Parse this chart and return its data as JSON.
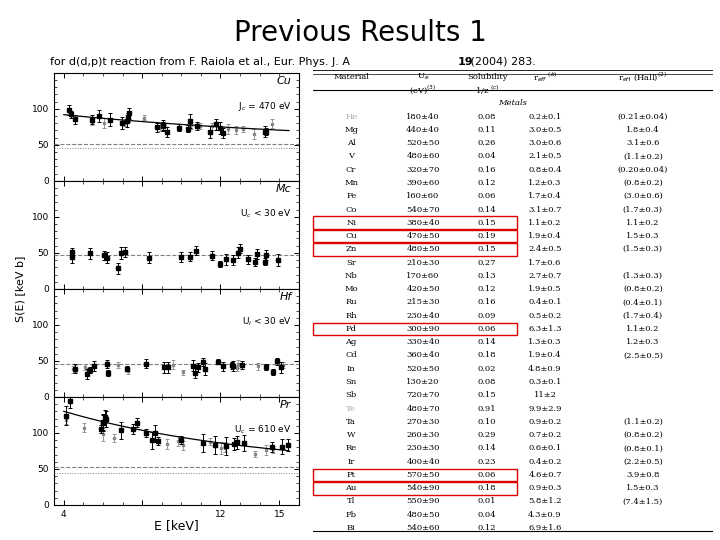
{
  "title": "Previous Results 1",
  "subtitle_pre": "for d(d,p)t reaction from F. Raiola et al., Eur. Phys. J. A",
  "subtitle_bold": "19",
  "subtitle_post": " (2004) 283.",
  "table_data": [
    [
      "He",
      "180±40",
      "0.08",
      "0.2±0.1",
      "(0.21±0.04)"
    ],
    [
      "Mg",
      "440±40",
      "0.11",
      "3.0±0.5",
      "1.8±0.4"
    ],
    [
      "Al",
      "520±50",
      "0.26",
      "3.0±0.6",
      "3.1±0.6"
    ],
    [
      "V",
      "480±60",
      "0.04",
      "2.1±0.5",
      "(1.1±0.2)"
    ],
    [
      "Cr",
      "320±70",
      "0.16",
      "0.8±0.4",
      "(0.20±0.04)"
    ],
    [
      "Mn",
      "390±60",
      "0.12",
      "1.2±0.3",
      "(0.8±0.2)"
    ],
    [
      "Fe",
      "160±60",
      "0.06",
      "1.7±0.4",
      "(3.0±0.6)"
    ],
    [
      "Co",
      "540±70",
      "0.14",
      "3.1±0.7",
      "(1.7±0.3)"
    ],
    [
      "Ni",
      "380±40",
      "0.15",
      "1.1±0.2",
      "1.1±0.2"
    ],
    [
      "Cu",
      "470±50",
      "0.19",
      "1.9±0.4",
      "1.5±0.3"
    ],
    [
      "Zn",
      "480±50",
      "0.15",
      "2.4±0.5",
      "(1.5±0.3)"
    ],
    [
      "Sr",
      "210±30",
      "0.27",
      "1.7±0.6",
      ""
    ],
    [
      "Nb",
      "170±60",
      "0.13",
      "2.7±0.7",
      "(1.3±0.3)"
    ],
    [
      "Mo",
      "420±50",
      "0.12",
      "1.9±0.5",
      "(0.8±0.2)"
    ],
    [
      "Ru",
      "215±30",
      "0.16",
      "0.4±0.1",
      "(0.4±0.1)"
    ],
    [
      "Rh",
      "230±40",
      "0.09",
      "0.5±0.2",
      "(1.7±0.4)"
    ],
    [
      "Pd",
      "300±90",
      "0.06",
      "6.3±1.3",
      "1.1±0.2"
    ],
    [
      "Ag",
      "330±40",
      "0.14",
      "1.3±0.3",
      "1.2±0.3"
    ],
    [
      "Cd",
      "360±40",
      "0.18",
      "1.9±0.4",
      "(2.5±0.5)"
    ],
    [
      "In",
      "520±50",
      "0.02",
      "4.8±0.9",
      ""
    ],
    [
      "Sn",
      "130±20",
      "0.08",
      "0.3±0.1",
      ""
    ],
    [
      "Sb",
      "720±70",
      "0.15",
      "11±2",
      ""
    ],
    [
      "Te",
      "480±70",
      "0.91",
      "9.9±2.9",
      ""
    ],
    [
      "Ta",
      "270±30",
      "0.10",
      "0.9±0.2",
      "(1.1±0.2)"
    ],
    [
      "W",
      "260±30",
      "0.29",
      "0.7±0.2",
      "(0.8±0.2)"
    ],
    [
      "Re",
      "230±30",
      "0.14",
      "0.6±0.1",
      "(0.8±0.1)"
    ],
    [
      "Ir",
      "400±40",
      "0.23",
      "0.4±0.2",
      "(2.2±0.5)"
    ],
    [
      "Pt",
      "570±50",
      "0.06",
      "4.6±0.7",
      "3.9±0.8"
    ],
    [
      "Au",
      "540±90",
      "0.18",
      "0.9±0.3",
      "1.5±0.3"
    ],
    [
      "Tl",
      "550±90",
      "0.01",
      "5.8±1.2",
      "(7.4±1.5)"
    ],
    [
      "Pb",
      "480±50",
      "0.04",
      "4.3±0.9",
      ""
    ],
    [
      "Bi",
      "540±60",
      "0.12",
      "6.9±1.6",
      ""
    ]
  ],
  "highlighted_rows": [
    8,
    9,
    10,
    16,
    27,
    28
  ],
  "gray_rows": [
    0,
    22
  ],
  "plot_panels": [
    {
      "label": "Cu",
      "annotation": "J$_c$ = 470 eV",
      "has_fit": true,
      "has_dotted": true
    },
    {
      "label": "Mc",
      "annotation": "U$_c$ < 30 eV",
      "has_fit": false,
      "has_dotted": false
    },
    {
      "label": "Hf",
      "annotation": "U$_i$ < 30 eV",
      "has_fit": false,
      "has_dotted": false
    },
    {
      "label": "Pr",
      "annotation": "U$_c$ = 610 eV",
      "has_fit": true,
      "has_dotted": true
    }
  ],
  "xlabel": "E [keV]",
  "ylabel": "S(E) [keV b]",
  "bg_color": "#ffffff",
  "text_color": "#000000",
  "gray_color": "#aaaaaa",
  "red_color": "#dd0000"
}
